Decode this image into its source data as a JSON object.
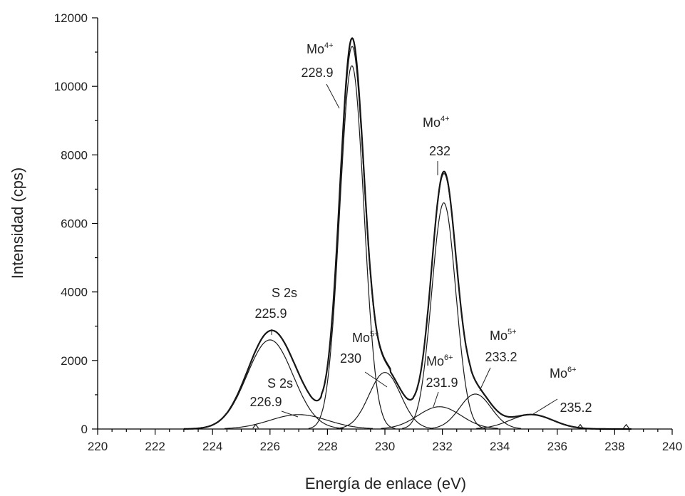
{
  "chart_data": {
    "type": "line",
    "title": "",
    "xlabel": "Energía de enlace (eV)",
    "ylabel": "Intensidad (cps)",
    "xlim": [
      220,
      240
    ],
    "ylim": [
      0,
      12000
    ],
    "x_ticks": [
      220,
      222,
      224,
      226,
      228,
      230,
      232,
      234,
      236,
      238,
      240
    ],
    "y_ticks": [
      0,
      2000,
      4000,
      6000,
      8000,
      10000,
      12000
    ],
    "x_tick_labels": [
      "220",
      "222",
      "224",
      "226",
      "228",
      "230",
      "232",
      "234",
      "236",
      "238",
      "240"
    ],
    "y_tick_labels": [
      "0",
      "2000",
      "4000",
      "6000",
      "8000",
      "10000",
      "12000"
    ],
    "grid": false,
    "legend": "none",
    "components": [
      {
        "label_base": "S 2s",
        "label_sup": "",
        "position": 225.9,
        "center": 226.0,
        "height": 2600,
        "width": 0.8,
        "position_label": "225.9"
      },
      {
        "label_base": "S 2s",
        "label_sup": "",
        "position": 226.9,
        "center": 227.0,
        "height": 420,
        "width": 1.0,
        "position_label": "226.9"
      },
      {
        "label_base": "Mo",
        "label_sup": "4+",
        "position": 228.9,
        "center": 228.85,
        "height": 10600,
        "width": 0.42,
        "position_label": "228.9"
      },
      {
        "label_base": "Mo",
        "label_sup": "5+",
        "position": 230.0,
        "center": 230.0,
        "height": 1650,
        "width": 0.55,
        "position_label": "230"
      },
      {
        "label_base": "Mo",
        "label_sup": "6+",
        "position": 231.9,
        "center": 231.9,
        "height": 650,
        "width": 0.75,
        "position_label": "231.9"
      },
      {
        "label_base": "Mo",
        "label_sup": "4+",
        "position": 232.0,
        "center": 232.05,
        "height": 6600,
        "width": 0.42,
        "position_label": "232"
      },
      {
        "label_base": "Mo",
        "label_sup": "5+",
        "position": 233.2,
        "center": 233.15,
        "height": 1020,
        "width": 0.55,
        "position_label": "233.2"
      },
      {
        "label_base": "Mo",
        "label_sup": "6+",
        "position": 235.2,
        "center": 235.1,
        "height": 420,
        "width": 0.75,
        "position_label": "235.2"
      }
    ],
    "measured_peaks": [
      {
        "x": 228.8,
        "y": 11300
      },
      {
        "x": 232.0,
        "y": 7450
      },
      {
        "x": 226.0,
        "y": 2870
      }
    ],
    "small_spikes_x": [
      238.4,
      236.8,
      225.5
    ]
  }
}
